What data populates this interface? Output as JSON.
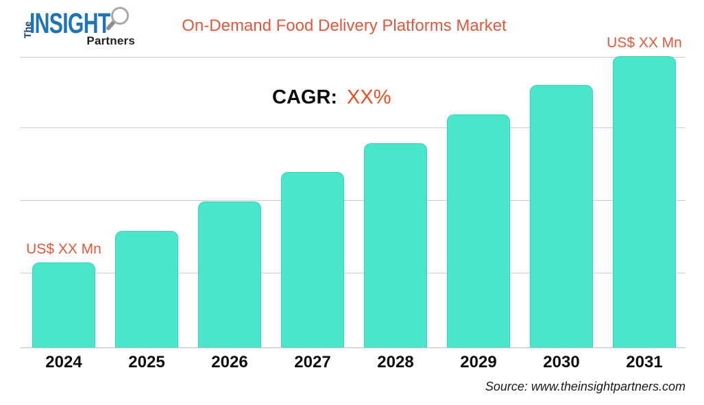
{
  "logo": {
    "the": "The",
    "insight": "INSIGHT",
    "partners": "Partners"
  },
  "header": {
    "title": "On-Demand Food Delivery Platforms Market"
  },
  "cagr": {
    "label": "CAGR:",
    "value": "XX%"
  },
  "source": {
    "text": "Source: www.theinsightpartners.com"
  },
  "chart_data": {
    "type": "bar",
    "title": "On-Demand Food Delivery Platforms Market",
    "categories": [
      "2024",
      "2025",
      "2026",
      "2027",
      "2028",
      "2029",
      "2030",
      "2031"
    ],
    "values": [
      124,
      170,
      213,
      256,
      298,
      340,
      383,
      425
    ],
    "value_units": "relative (y-axis unlabeled; actual figures masked as XX)",
    "bar_labels": [
      {
        "index": 0,
        "text": "US$ XX Mn"
      },
      {
        "index": 7,
        "text": "US$ XX Mn"
      }
    ],
    "xlabel": "",
    "ylabel": "",
    "ylim": [
      0,
      450
    ],
    "grid": true,
    "legend": false,
    "colors": {
      "bar": "#49e6cc",
      "accent_text": "#e4573c",
      "gridline": "#cccccc"
    }
  }
}
